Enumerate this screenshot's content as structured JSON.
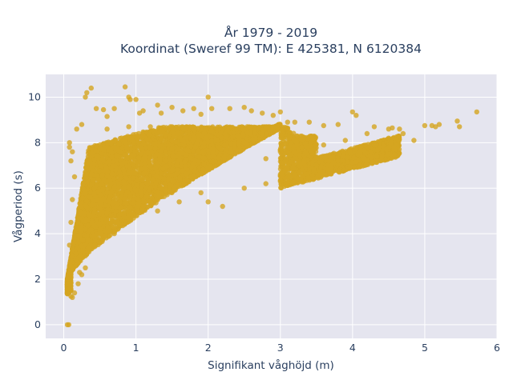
{
  "chart_data": {
    "type": "scatter",
    "title": "År 1979 - 2019",
    "subtitle": "Koordinat (Sweref 99 TM): E 425381, N 6120384",
    "xlabel": "Signifikant våghöjd (m)",
    "ylabel": "Vågperiod (s)",
    "xlim": [
      -0.25,
      6.0
    ],
    "ylim": [
      -0.6,
      11.0
    ],
    "xticks": [
      0,
      1,
      2,
      3,
      4,
      5,
      6
    ],
    "yticks": [
      0,
      2,
      4,
      6,
      8,
      10
    ],
    "grid": true,
    "marker_color": "#d4a520",
    "plot_background": "#e5e5ef",
    "series": [
      {
        "points": [
          [
            0.05,
            0.0
          ],
          [
            0.07,
            0.0
          ],
          [
            0.06,
            1.55
          ],
          [
            0.08,
            1.8
          ],
          [
            0.1,
            1.25
          ],
          [
            0.12,
            1.2
          ],
          [
            0.15,
            1.4
          ],
          [
            0.2,
            1.8
          ],
          [
            0.25,
            2.2
          ],
          [
            0.3,
            2.5
          ],
          [
            0.12,
            3.0
          ],
          [
            0.08,
            3.5
          ],
          [
            0.1,
            4.5
          ],
          [
            0.12,
            5.5
          ],
          [
            0.15,
            6.5
          ],
          [
            0.1,
            7.2
          ],
          [
            0.08,
            7.8
          ],
          [
            0.08,
            8.0
          ],
          [
            0.12,
            7.6
          ],
          [
            0.18,
            8.6
          ],
          [
            0.25,
            8.8
          ],
          [
            0.3,
            10.0
          ],
          [
            0.32,
            10.2
          ],
          [
            0.38,
            10.4
          ],
          [
            0.45,
            9.5
          ],
          [
            0.55,
            9.45
          ],
          [
            0.6,
            9.15
          ],
          [
            0.7,
            9.5
          ],
          [
            0.85,
            10.45
          ],
          [
            0.9,
            10.0
          ],
          [
            0.92,
            9.9
          ],
          [
            1.0,
            9.9
          ],
          [
            1.05,
            9.3
          ],
          [
            1.1,
            9.4
          ],
          [
            1.3,
            9.65
          ],
          [
            1.35,
            9.3
          ],
          [
            1.5,
            9.55
          ],
          [
            1.65,
            9.4
          ],
          [
            1.8,
            9.5
          ],
          [
            1.9,
            9.25
          ],
          [
            2.0,
            10.0
          ],
          [
            2.05,
            9.5
          ],
          [
            2.3,
            9.5
          ],
          [
            2.5,
            9.55
          ],
          [
            2.6,
            9.4
          ],
          [
            2.75,
            9.3
          ],
          [
            2.9,
            9.2
          ],
          [
            3.0,
            9.35
          ],
          [
            3.1,
            8.9
          ],
          [
            3.2,
            8.9
          ],
          [
            3.4,
            8.9
          ],
          [
            3.6,
            8.75
          ],
          [
            3.8,
            8.8
          ],
          [
            4.0,
            9.35
          ],
          [
            4.05,
            9.2
          ],
          [
            4.3,
            8.7
          ],
          [
            4.5,
            8.6
          ],
          [
            4.55,
            8.65
          ],
          [
            4.65,
            8.6
          ],
          [
            4.7,
            8.4
          ],
          [
            4.85,
            8.1
          ],
          [
            5.0,
            8.75
          ],
          [
            5.1,
            8.75
          ],
          [
            5.15,
            8.7
          ],
          [
            5.2,
            8.8
          ],
          [
            5.45,
            8.95
          ],
          [
            5.48,
            8.7
          ],
          [
            5.72,
            9.35
          ],
          [
            0.22,
            2.3
          ],
          [
            0.35,
            3.4
          ],
          [
            0.5,
            3.6
          ],
          [
            0.7,
            4.0
          ],
          [
            1.0,
            4.8
          ],
          [
            1.3,
            5.0
          ],
          [
            1.6,
            5.4
          ],
          [
            1.9,
            5.8
          ],
          [
            2.2,
            5.2
          ],
          [
            2.0,
            5.4
          ],
          [
            2.5,
            6.0
          ],
          [
            2.8,
            6.2
          ],
          [
            3.0,
            6.3
          ],
          [
            3.2,
            6.6
          ],
          [
            3.5,
            7.0
          ],
          [
            3.8,
            7.2
          ],
          [
            4.1,
            7.6
          ],
          [
            4.3,
            7.9
          ],
          [
            4.5,
            8.2
          ],
          [
            4.2,
            8.4
          ],
          [
            3.9,
            8.1
          ],
          [
            3.6,
            7.9
          ],
          [
            3.3,
            7.8
          ],
          [
            3.0,
            7.6
          ],
          [
            2.8,
            7.3
          ],
          [
            2.5,
            8.0
          ],
          [
            2.2,
            8.6
          ],
          [
            1.8,
            8.6
          ],
          [
            1.5,
            8.7
          ],
          [
            1.2,
            8.7
          ],
          [
            0.9,
            8.7
          ],
          [
            0.6,
            8.6
          ]
        ]
      }
    ]
  }
}
